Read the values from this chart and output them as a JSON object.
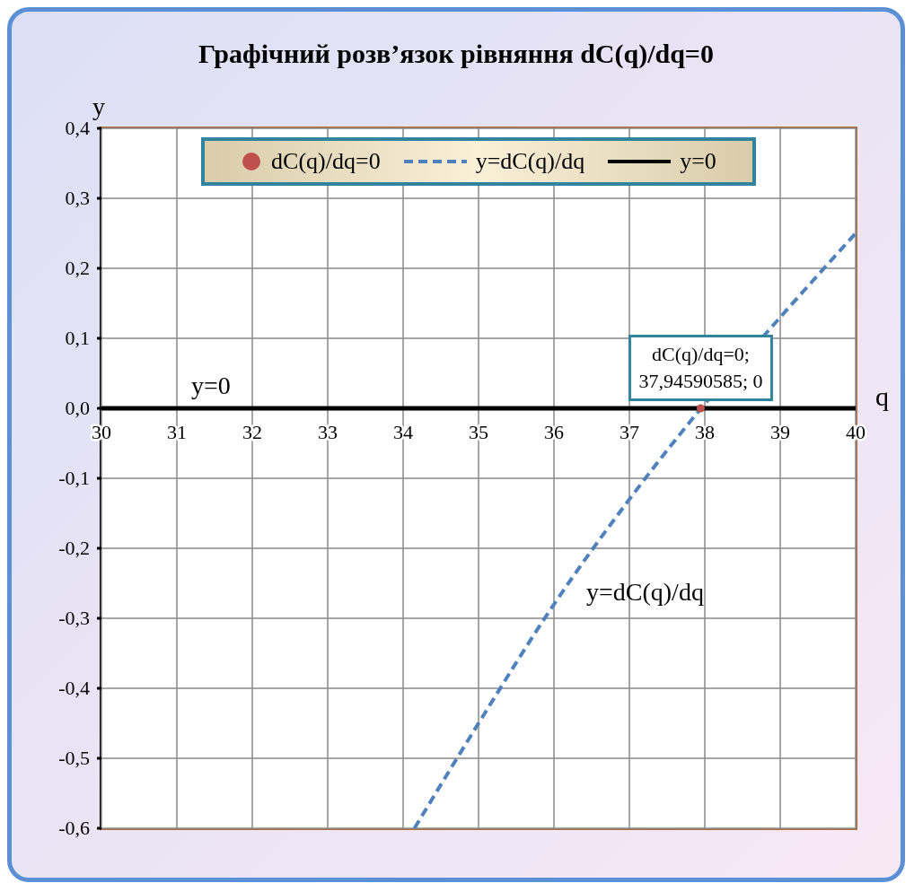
{
  "chart_data": {
    "type": "line",
    "title": "Графічний розв’язок рівняння dC(q)/dq=0",
    "xlabel": "q",
    "ylabel": "y",
    "xlim": [
      30,
      40
    ],
    "xticks": [
      30,
      31,
      32,
      33,
      34,
      35,
      36,
      37,
      38,
      39,
      40
    ],
    "ylim": [
      -0.6,
      0.4
    ],
    "yticks": [
      {
        "value": 0.4,
        "label": "0,4"
      },
      {
        "value": 0.3,
        "label": "0,3"
      },
      {
        "value": 0.2,
        "label": "0,2"
      },
      {
        "value": 0.1,
        "label": "0,1"
      },
      {
        "value": 0,
        "label": "0,0"
      },
      {
        "value": -0.1,
        "label": "-0,1"
      },
      {
        "value": -0.2,
        "label": "-0,2"
      },
      {
        "value": -0.3,
        "label": "-0,3"
      },
      {
        "value": -0.4,
        "label": "-0,4"
      },
      {
        "value": -0.5,
        "label": "-0,5"
      },
      {
        "value": -0.6,
        "label": "-0,6"
      }
    ],
    "grid": true,
    "legend": "top",
    "series": [
      {
        "name": "dC(q)/dq=0",
        "type": "scatter",
        "marker": "circle",
        "color": "#c0504d",
        "x": [
          37.94590585
        ],
        "values": [
          0
        ]
      },
      {
        "name": "y=dC(q)/dq",
        "line_style": "dashed",
        "marker": "none",
        "color": "#4f81bd",
        "x": [
          34.15,
          35,
          36,
          37,
          37.95,
          39,
          40
        ],
        "values": [
          -0.6,
          -0.45,
          -0.28,
          -0.13,
          0,
          0.13,
          0.25
        ]
      },
      {
        "name": "y=0",
        "line_style": "solid",
        "marker": "none",
        "color": "#000000",
        "x": [
          30,
          40
        ],
        "values": [
          0,
          0
        ]
      }
    ],
    "annotations": [
      {
        "text": "dC(q)/dq=0;\n37,94590585; 0",
        "x": 37.94590585,
        "y": 0
      }
    ]
  }
}
